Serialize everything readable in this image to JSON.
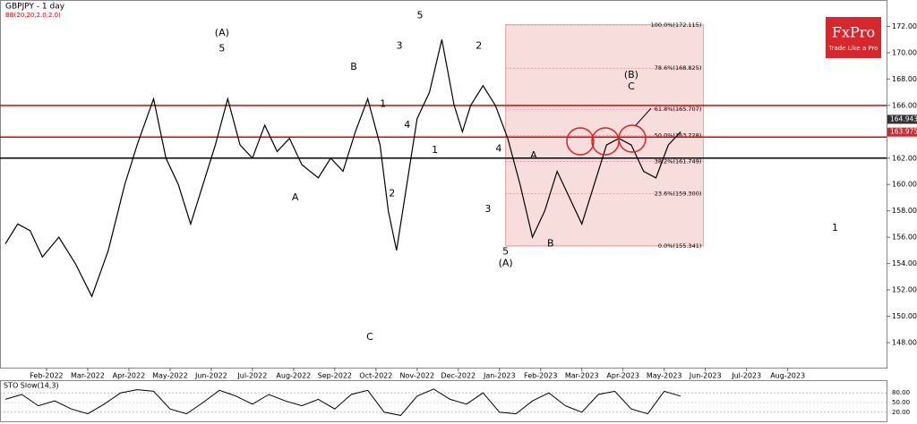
{
  "logo": {
    "name": "FxPro",
    "tagline": "Trade Like a Pro"
  },
  "chart_data": {
    "type": "line",
    "title": "GBPJPY - 1 day",
    "subtitle": "BB(20,20,2.0,2.0)",
    "x": [
      0,
      0.3,
      0.6,
      0.9,
      1.3,
      1.7,
      2.1,
      2.5,
      2.9,
      3.2,
      3.6,
      3.9,
      4.2,
      4.5,
      4.8,
      5.1,
      5.4,
      5.7,
      6.0,
      6.3,
      6.6,
      6.9,
      7.2,
      7.6,
      7.9,
      8.2,
      8.5,
      8.8,
      9.1,
      9.3,
      9.5,
      9.8,
      10.0,
      10.3,
      10.6,
      10.9,
      11.1,
      11.3,
      11.6,
      11.9,
      12.2,
      12.5,
      12.8,
      13.1,
      13.4,
      13.7,
      14.0,
      14.3,
      14.6,
      14.9,
      15.2,
      15.5,
      15.8,
      16.1,
      16.4
    ],
    "series": [
      {
        "name": "GBPJPY",
        "color": "#000000",
        "values": [
          155.5,
          157,
          156.5,
          154.5,
          156,
          154,
          151.5,
          155,
          160,
          163,
          166.5,
          162,
          160,
          157,
          160,
          163,
          166.5,
          163,
          162,
          164.5,
          162.5,
          163.5,
          161.5,
          160.5,
          162,
          161,
          164,
          166.5,
          163,
          158,
          155,
          161,
          165,
          167,
          171,
          166,
          164,
          166,
          167.5,
          166,
          163.5,
          160,
          156,
          158,
          161,
          159,
          157,
          160,
          163,
          163.5,
          163,
          161,
          160.5,
          163,
          164
        ]
      }
    ],
    "xticks": [
      {
        "value": 1,
        "label": "Feb-2022"
      },
      {
        "value": 2,
        "label": "Mar-2022"
      },
      {
        "value": 3,
        "label": "Apr-2022"
      },
      {
        "value": 4,
        "label": "May-2022"
      },
      {
        "value": 5,
        "label": "Jun-2022"
      },
      {
        "value": 6,
        "label": "Jul-2022"
      },
      {
        "value": 7,
        "label": "Aug-2022"
      },
      {
        "value": 8,
        "label": "Sep-2022"
      },
      {
        "value": 9,
        "label": "Oct-2022"
      },
      {
        "value": 10,
        "label": "Nov-2022"
      },
      {
        "value": 11,
        "label": "Dec-2022"
      },
      {
        "value": 12,
        "label": "Jan-2023"
      },
      {
        "value": 13,
        "label": "Feb-2023"
      },
      {
        "value": 14,
        "label": "Mar-2023"
      },
      {
        "value": 15,
        "label": "Apr-2023"
      },
      {
        "value": 16,
        "label": "May-2023"
      },
      {
        "value": 17,
        "label": "Jun-2023"
      },
      {
        "value": 18,
        "label": "Jul-2023"
      },
      {
        "value": 19,
        "label": "Aug-2023"
      }
    ],
    "xlim": [
      -0.13,
      21.4
    ],
    "ylim": [
      146.1,
      174
    ],
    "yticks": [
      {
        "value": 148,
        "label": "148.000"
      },
      {
        "value": 150,
        "label": "150.000"
      },
      {
        "value": 152,
        "label": "152.000"
      },
      {
        "value": 154,
        "label": "154.000"
      },
      {
        "value": 156,
        "label": "156.000"
      },
      {
        "value": 158,
        "label": "158.000"
      },
      {
        "value": 160,
        "label": "160.000"
      },
      {
        "value": 162,
        "label": "162.000"
      },
      {
        "value": 164,
        "label": "164.000"
      },
      {
        "value": 166,
        "label": "166.000"
      },
      {
        "value": 168,
        "label": "168.000"
      },
      {
        "value": 170,
        "label": "170.000"
      },
      {
        "value": 172,
        "label": "172.000"
      }
    ],
    "levels": [
      {
        "value": 166,
        "color": "#e00000"
      },
      {
        "value": 163.6,
        "color": "#e00000"
      },
      {
        "value": 162,
        "color": "#000000"
      }
    ],
    "price_tags": [
      {
        "value": 164.943,
        "label": "164.943",
        "color": "#333333"
      },
      {
        "value": 163.975,
        "label": "163.975",
        "color": "#d7262c"
      }
    ],
    "fib_box": {
      "x": [
        12.15,
        16.95
      ],
      "color": "#f4c6c6"
    },
    "fib_levels": [
      {
        "value": 172.115,
        "label": "100.0%(172.115)"
      },
      {
        "value": 168.825,
        "label": "78.6%(168.825)"
      },
      {
        "value": 165.707,
        "label": "61.8%(165.707)"
      },
      {
        "value": 163.728,
        "label": "50.0%(163.728)"
      },
      {
        "value": 161.749,
        "label": "38.2%(161.749)"
      },
      {
        "value": 159.3,
        "label": "23.6%(159.300)"
      },
      {
        "value": 155.341,
        "label": "0.0%(155.341)"
      }
    ],
    "annotations": [
      "(A)",
      "5",
      "5",
      "3",
      "2",
      "B",
      "1",
      "4",
      "1",
      "A",
      "2",
      "C",
      "4",
      "3",
      "5",
      "(A)",
      "A",
      "B",
      "(B)",
      "C",
      "1"
    ],
    "stochastic": {
      "title": "STO Slow(14,3)",
      "color": "#000000",
      "ylim": [
        0,
        100
      ],
      "yticks": [
        {
          "value": 80,
          "label": "80.00"
        },
        {
          "value": 50,
          "label": "50.00"
        },
        {
          "value": 20,
          "label": "20.00"
        }
      ],
      "x": [
        0,
        0.4,
        0.8,
        1.2,
        1.6,
        2.0,
        2.4,
        2.8,
        3.2,
        3.6,
        4.0,
        4.4,
        4.8,
        5.2,
        5.6,
        6.0,
        6.4,
        6.8,
        7.2,
        7.6,
        8.0,
        8.4,
        8.8,
        9.2,
        9.6,
        10.0,
        10.4,
        10.8,
        11.2,
        11.6,
        12.0,
        12.4,
        12.8,
        13.2,
        13.6,
        14.0,
        14.4,
        14.8,
        15.2,
        15.6,
        16.0,
        16.4
      ],
      "values": [
        60,
        75,
        40,
        55,
        30,
        15,
        45,
        80,
        90,
        85,
        30,
        15,
        50,
        88,
        70,
        45,
        75,
        55,
        40,
        60,
        30,
        75,
        88,
        20,
        10,
        70,
        92,
        60,
        45,
        80,
        20,
        15,
        55,
        80,
        40,
        20,
        75,
        85,
        30,
        15,
        85,
        70
      ]
    }
  }
}
